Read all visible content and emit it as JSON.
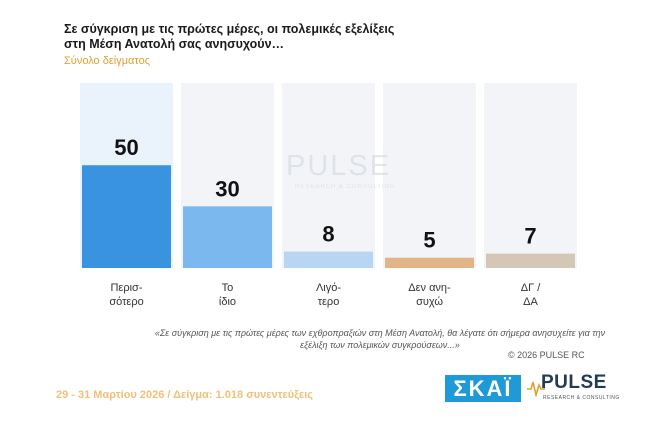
{
  "chart_data": {
    "type": "bar",
    "title": "Σε σύγκριση με τις πρώτες μέρες, οι πολεμικές εξελίξεις στη Μέση Ανατολή σας ανησυχούν…",
    "subtitle": "Σύνολο δείγματος",
    "categories": [
      [
        "Περισ-",
        "σότερο"
      ],
      [
        "Το",
        "ίδιο"
      ],
      [
        "Λιγό-",
        "τερο"
      ],
      [
        "Δεν ανη-",
        "συχώ"
      ],
      [
        "ΔΓ /",
        "ΔΑ"
      ]
    ],
    "values": [
      50,
      30,
      8,
      5,
      7
    ],
    "ylim": [
      0,
      90
    ],
    "colors": [
      "#3a93e0",
      "#7ab8ee",
      "#b8d6f3",
      "#e2b589",
      "#d4c7b5"
    ],
    "grid": false,
    "legend": "none"
  },
  "watermark": {
    "name": "PULSE",
    "tagline": "RESEARCH & CONSULTING"
  },
  "footnote": "«Σε σύγκριση με τις πρώτες μέρες των εχθροπραξιών στη Μέση Ανατολή, θα λέγατε ότι σήμερα ανησυχείτε για την εξέλιξη των πολεμικών συγκρούσεων...»",
  "copyright": "© 2026 PULSE RC",
  "footer": "29 - 31 Μαρτίου 2026 / Δείγμα: 1.018 συνεντεύξεις",
  "logos": {
    "skai": "ΣΚΑΪ",
    "pulse": "PULSE",
    "pulse_tagline": "RESEARCH & CONSULTING"
  }
}
